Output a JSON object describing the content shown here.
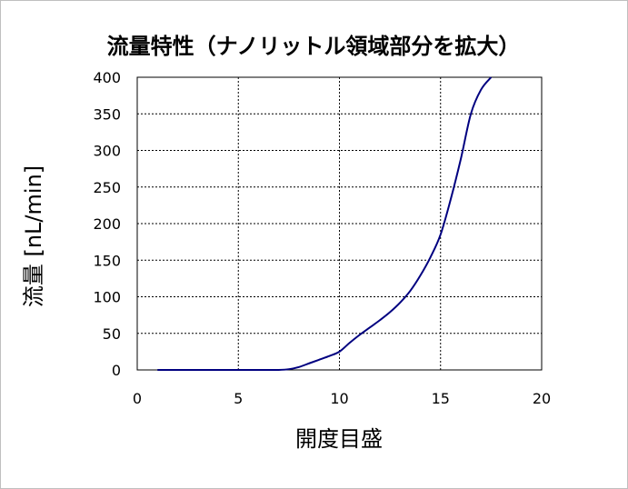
{
  "chart_data": {
    "type": "line",
    "title": "流量特性（ナノリットル領域部分を拡大）",
    "xlabel": "開度目盛",
    "ylabel": "流量 [nL/min]",
    "xlim": [
      0,
      20
    ],
    "ylim": [
      0,
      400
    ],
    "x_ticks": [
      "0",
      "5",
      "10",
      "15",
      "20"
    ],
    "y_ticks": [
      "0",
      "50",
      "100",
      "150",
      "200",
      "250",
      "300",
      "350",
      "400"
    ],
    "grid": true,
    "line_color": "#000080",
    "series": [
      {
        "x": [
          1,
          2,
          3,
          4,
          5,
          6,
          6.5,
          7,
          7.5,
          8,
          8.5,
          9,
          9.5,
          10,
          10.5,
          11,
          11.5,
          12,
          12.5,
          13,
          13.5,
          14,
          14.5,
          15,
          15.5,
          16,
          16.5,
          17,
          17.5
        ],
        "values": [
          0,
          0,
          0,
          0,
          0,
          0,
          0,
          0,
          1,
          4,
          9,
          14,
          19,
          25,
          37,
          48,
          58,
          68,
          79,
          92,
          108,
          129,
          154,
          185,
          233,
          288,
          350,
          383,
          400
        ]
      }
    ]
  }
}
